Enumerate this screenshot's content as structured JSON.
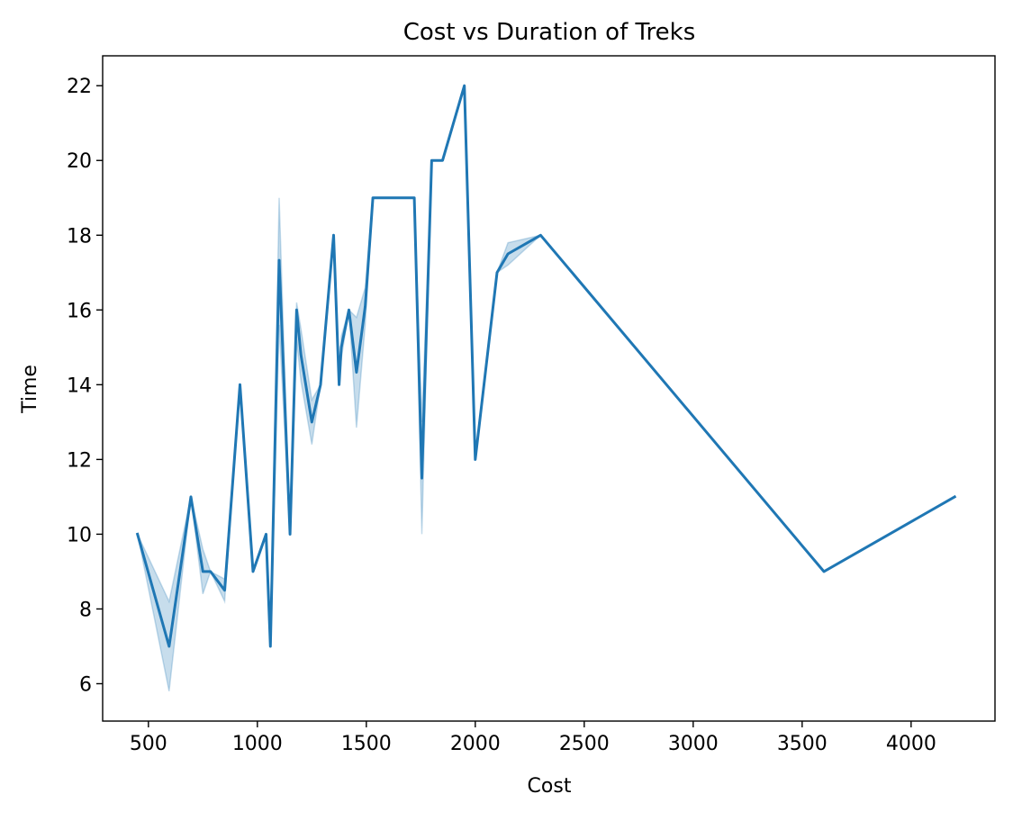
{
  "chart_data": {
    "type": "line",
    "title": "Cost vs Duration of Treks",
    "xlabel": "Cost",
    "ylabel": "Time",
    "xlim": [
      290,
      4385
    ],
    "ylim": [
      5.0,
      22.8
    ],
    "xticks": [
      500,
      1000,
      1500,
      2000,
      2500,
      3000,
      3500,
      4000
    ],
    "yticks": [
      6,
      8,
      10,
      12,
      14,
      16,
      18,
      20,
      22
    ],
    "grid": false,
    "legend": "none",
    "colors": {
      "line": "#1f77b4",
      "band": "#1f77b4",
      "band_opacity": 0.25
    },
    "series": [
      {
        "x": [
          450,
          595,
          695,
          750,
          785,
          850,
          920,
          980,
          1040,
          1060,
          1100,
          1150,
          1180,
          1200,
          1250,
          1290,
          1350,
          1375,
          1385,
          1420,
          1455,
          1495,
          1530,
          1720,
          1755,
          1800,
          1850,
          1950,
          2000,
          2100,
          2150,
          2300,
          3600,
          4200
        ],
        "y": [
          10,
          7,
          11,
          9,
          9,
          8.5,
          14,
          9,
          10,
          7,
          17.33,
          10,
          16,
          14.8,
          13,
          14,
          18,
          14,
          15,
          16,
          14.33,
          16.1,
          19,
          19,
          11.5,
          20,
          20,
          22,
          12,
          17,
          17.5,
          18,
          9,
          11
        ],
        "y_lower": [
          10,
          5.8,
          11,
          8.4,
          9,
          8.2,
          14,
          9,
          10,
          7,
          15.6,
          10,
          15.2,
          14.1,
          12.4,
          14,
          18,
          14,
          14.7,
          16,
          12.85,
          15.6,
          19,
          19,
          10,
          20,
          20,
          22,
          12,
          17,
          17.2,
          18,
          9,
          11
        ],
        "y_upper": [
          10,
          8.2,
          11,
          9.6,
          9,
          8.8,
          14,
          9,
          10,
          7,
          19,
          10,
          16.2,
          15.5,
          13.6,
          14,
          18,
          14,
          15.3,
          16,
          15.8,
          16.6,
          19,
          19,
          13,
          20,
          20,
          22,
          12,
          17,
          17.8,
          18,
          9,
          11
        ]
      }
    ]
  }
}
